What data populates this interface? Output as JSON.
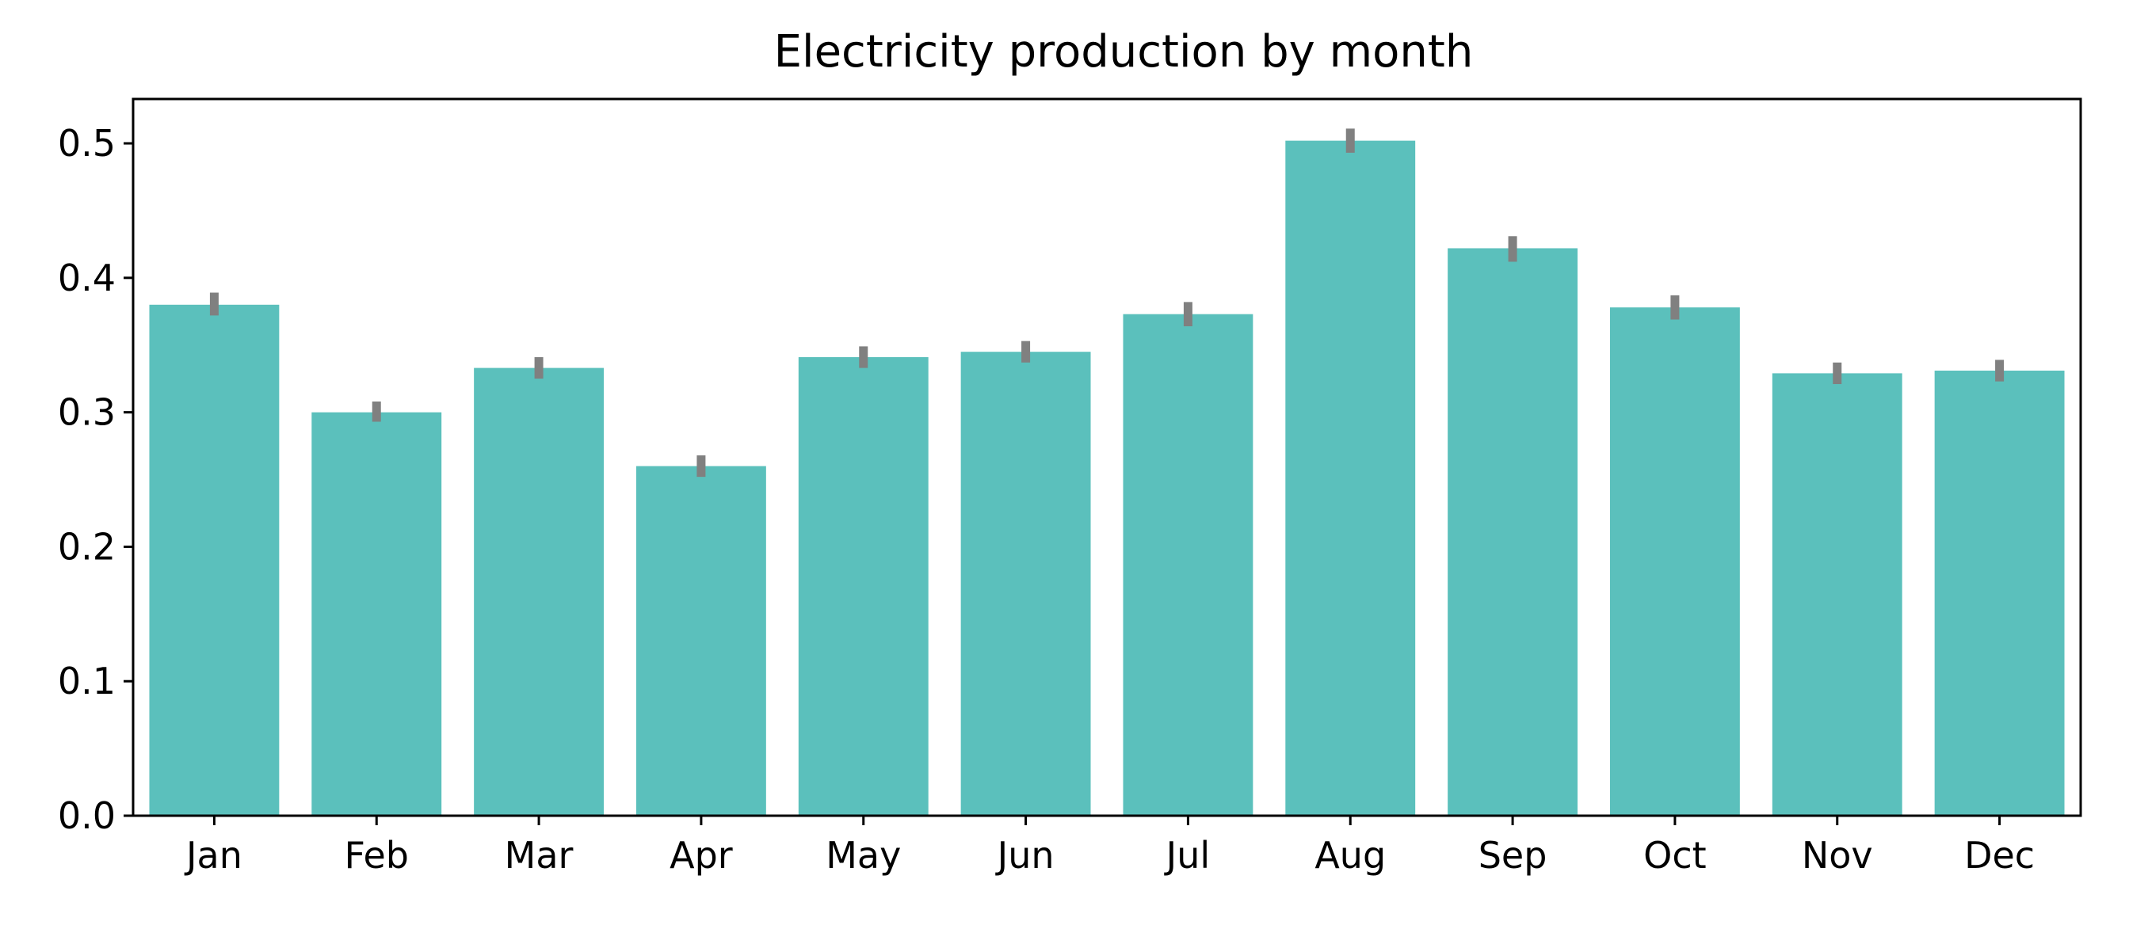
{
  "chart_data": {
    "type": "bar",
    "title": "Electricity production by month",
    "xlabel": "",
    "ylabel": "",
    "categories": [
      "Jan",
      "Feb",
      "Mar",
      "Apr",
      "May",
      "Jun",
      "Jul",
      "Aug",
      "Sep",
      "Oct",
      "Nov",
      "Dec"
    ],
    "values": [
      0.38,
      0.3,
      0.333,
      0.26,
      0.341,
      0.345,
      0.373,
      0.502,
      0.422,
      0.378,
      0.329,
      0.331
    ],
    "error_low": [
      0.372,
      0.293,
      0.325,
      0.252,
      0.333,
      0.337,
      0.364,
      0.493,
      0.412,
      0.369,
      0.321,
      0.323
    ],
    "error_high": [
      0.389,
      0.308,
      0.341,
      0.268,
      0.349,
      0.353,
      0.382,
      0.511,
      0.431,
      0.387,
      0.337,
      0.339
    ],
    "yticks": [
      "0.0",
      "0.1",
      "0.2",
      "0.3",
      "0.4",
      "0.5"
    ],
    "ylim": [
      0,
      0.533
    ],
    "grid": false,
    "legend": "none",
    "bar_color": "#5bc0bc",
    "error_color": "#808080"
  }
}
